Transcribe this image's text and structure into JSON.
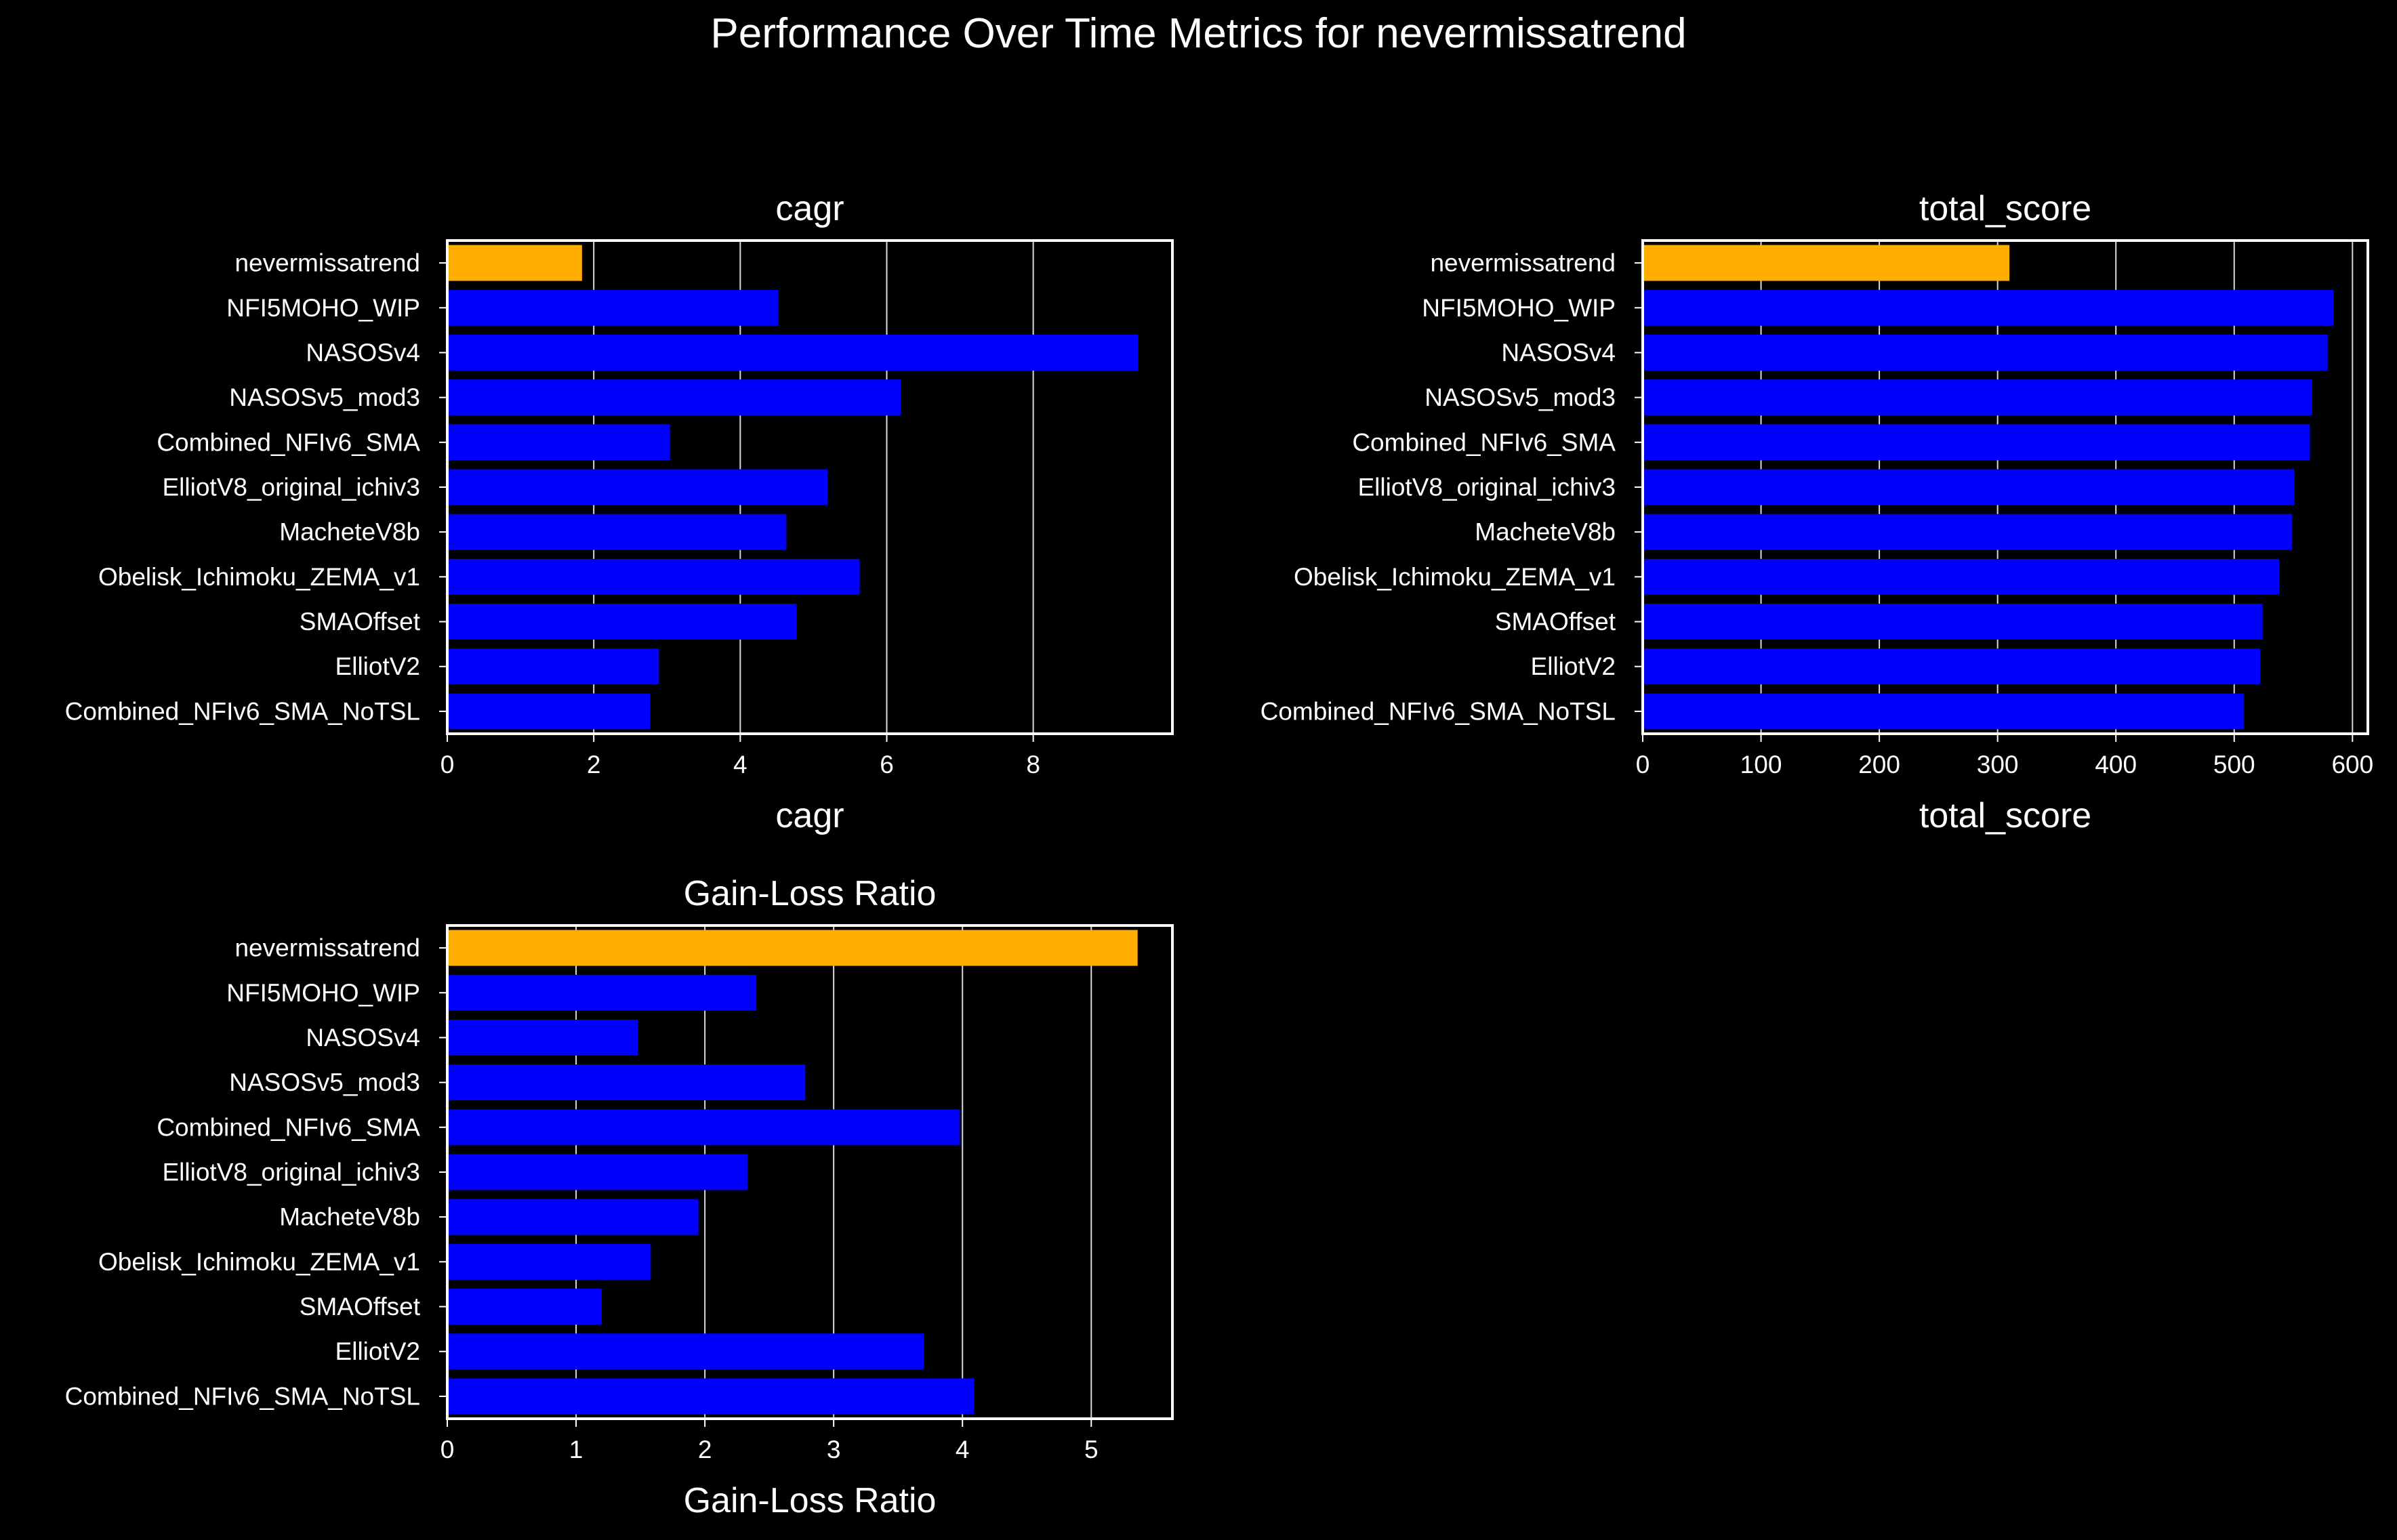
{
  "figure": {
    "title": "Performance Over Time Metrics for nevermissatrend",
    "colors": {
      "background": "#000000",
      "highlight": "#FFAD00",
      "bar": "#0000FF",
      "text": "#FFFFFF",
      "grid": "#FFFFFF"
    }
  },
  "chart_data": [
    {
      "type": "bar",
      "orientation": "horizontal",
      "title": "cagr",
      "xlabel": "cagr",
      "ylabel": "",
      "categories": [
        "nevermissatrend",
        "NFI5MOHO_WIP",
        "NASOSv4",
        "NASOSv5_mod3",
        "Combined_NFIv6_SMA",
        "ElliotV8_original_ichiv3",
        "MacheteV8b",
        "Obelisk_Ichimoku_ZEMA_v1",
        "SMAOffset",
        "ElliotV2",
        "Combined_NFIv6_SMA_NoTSL"
      ],
      "values": [
        1.84,
        4.52,
        9.43,
        6.19,
        3.04,
        5.19,
        4.63,
        5.63,
        4.77,
        2.89,
        2.77
      ],
      "xlim": [
        0,
        9.9
      ],
      "xticks": [
        0,
        2,
        4,
        6,
        8
      ],
      "highlight_category": "nevermissatrend",
      "grid": "vertical",
      "legend": "none"
    },
    {
      "type": "bar",
      "orientation": "horizontal",
      "title": "total_score",
      "xlabel": "total_score",
      "ylabel": "",
      "categories": [
        "nevermissatrend",
        "NFI5MOHO_WIP",
        "NASOSv4",
        "NASOSv5_mod3",
        "Combined_NFIv6_SMA",
        "ElliotV8_original_ichiv3",
        "MacheteV8b",
        "Obelisk_Ichimoku_ZEMA_v1",
        "SMAOffset",
        "ElliotV2",
        "Combined_NFIv6_SMA_NoTSL"
      ],
      "values": [
        310,
        584,
        579,
        566,
        564,
        551,
        549,
        538,
        524,
        522,
        508
      ],
      "xlim": [
        0,
        613
      ],
      "xticks": [
        0,
        100,
        200,
        300,
        400,
        500,
        600
      ],
      "highlight_category": "nevermissatrend",
      "grid": "vertical",
      "legend": "none"
    },
    {
      "type": "bar",
      "orientation": "horizontal",
      "title": "Gain-Loss Ratio",
      "xlabel": "Gain-Loss Ratio",
      "ylabel": "",
      "categories": [
        "nevermissatrend",
        "NFI5MOHO_WIP",
        "NASOSv4",
        "NASOSv5_mod3",
        "Combined_NFIv6_SMA",
        "ElliotV8_original_ichiv3",
        "MacheteV8b",
        "Obelisk_Ichimoku_ZEMA_v1",
        "SMAOffset",
        "ElliotV2",
        "Combined_NFIv6_SMA_NoTSL"
      ],
      "values": [
        5.36,
        2.4,
        1.48,
        2.78,
        3.98,
        2.33,
        1.95,
        1.58,
        1.2,
        3.7,
        4.09
      ],
      "xlim": [
        0,
        5.63
      ],
      "xticks": [
        0,
        1,
        2,
        3,
        4,
        5
      ],
      "highlight_category": "nevermissatrend",
      "grid": "vertical",
      "legend": "none"
    }
  ]
}
